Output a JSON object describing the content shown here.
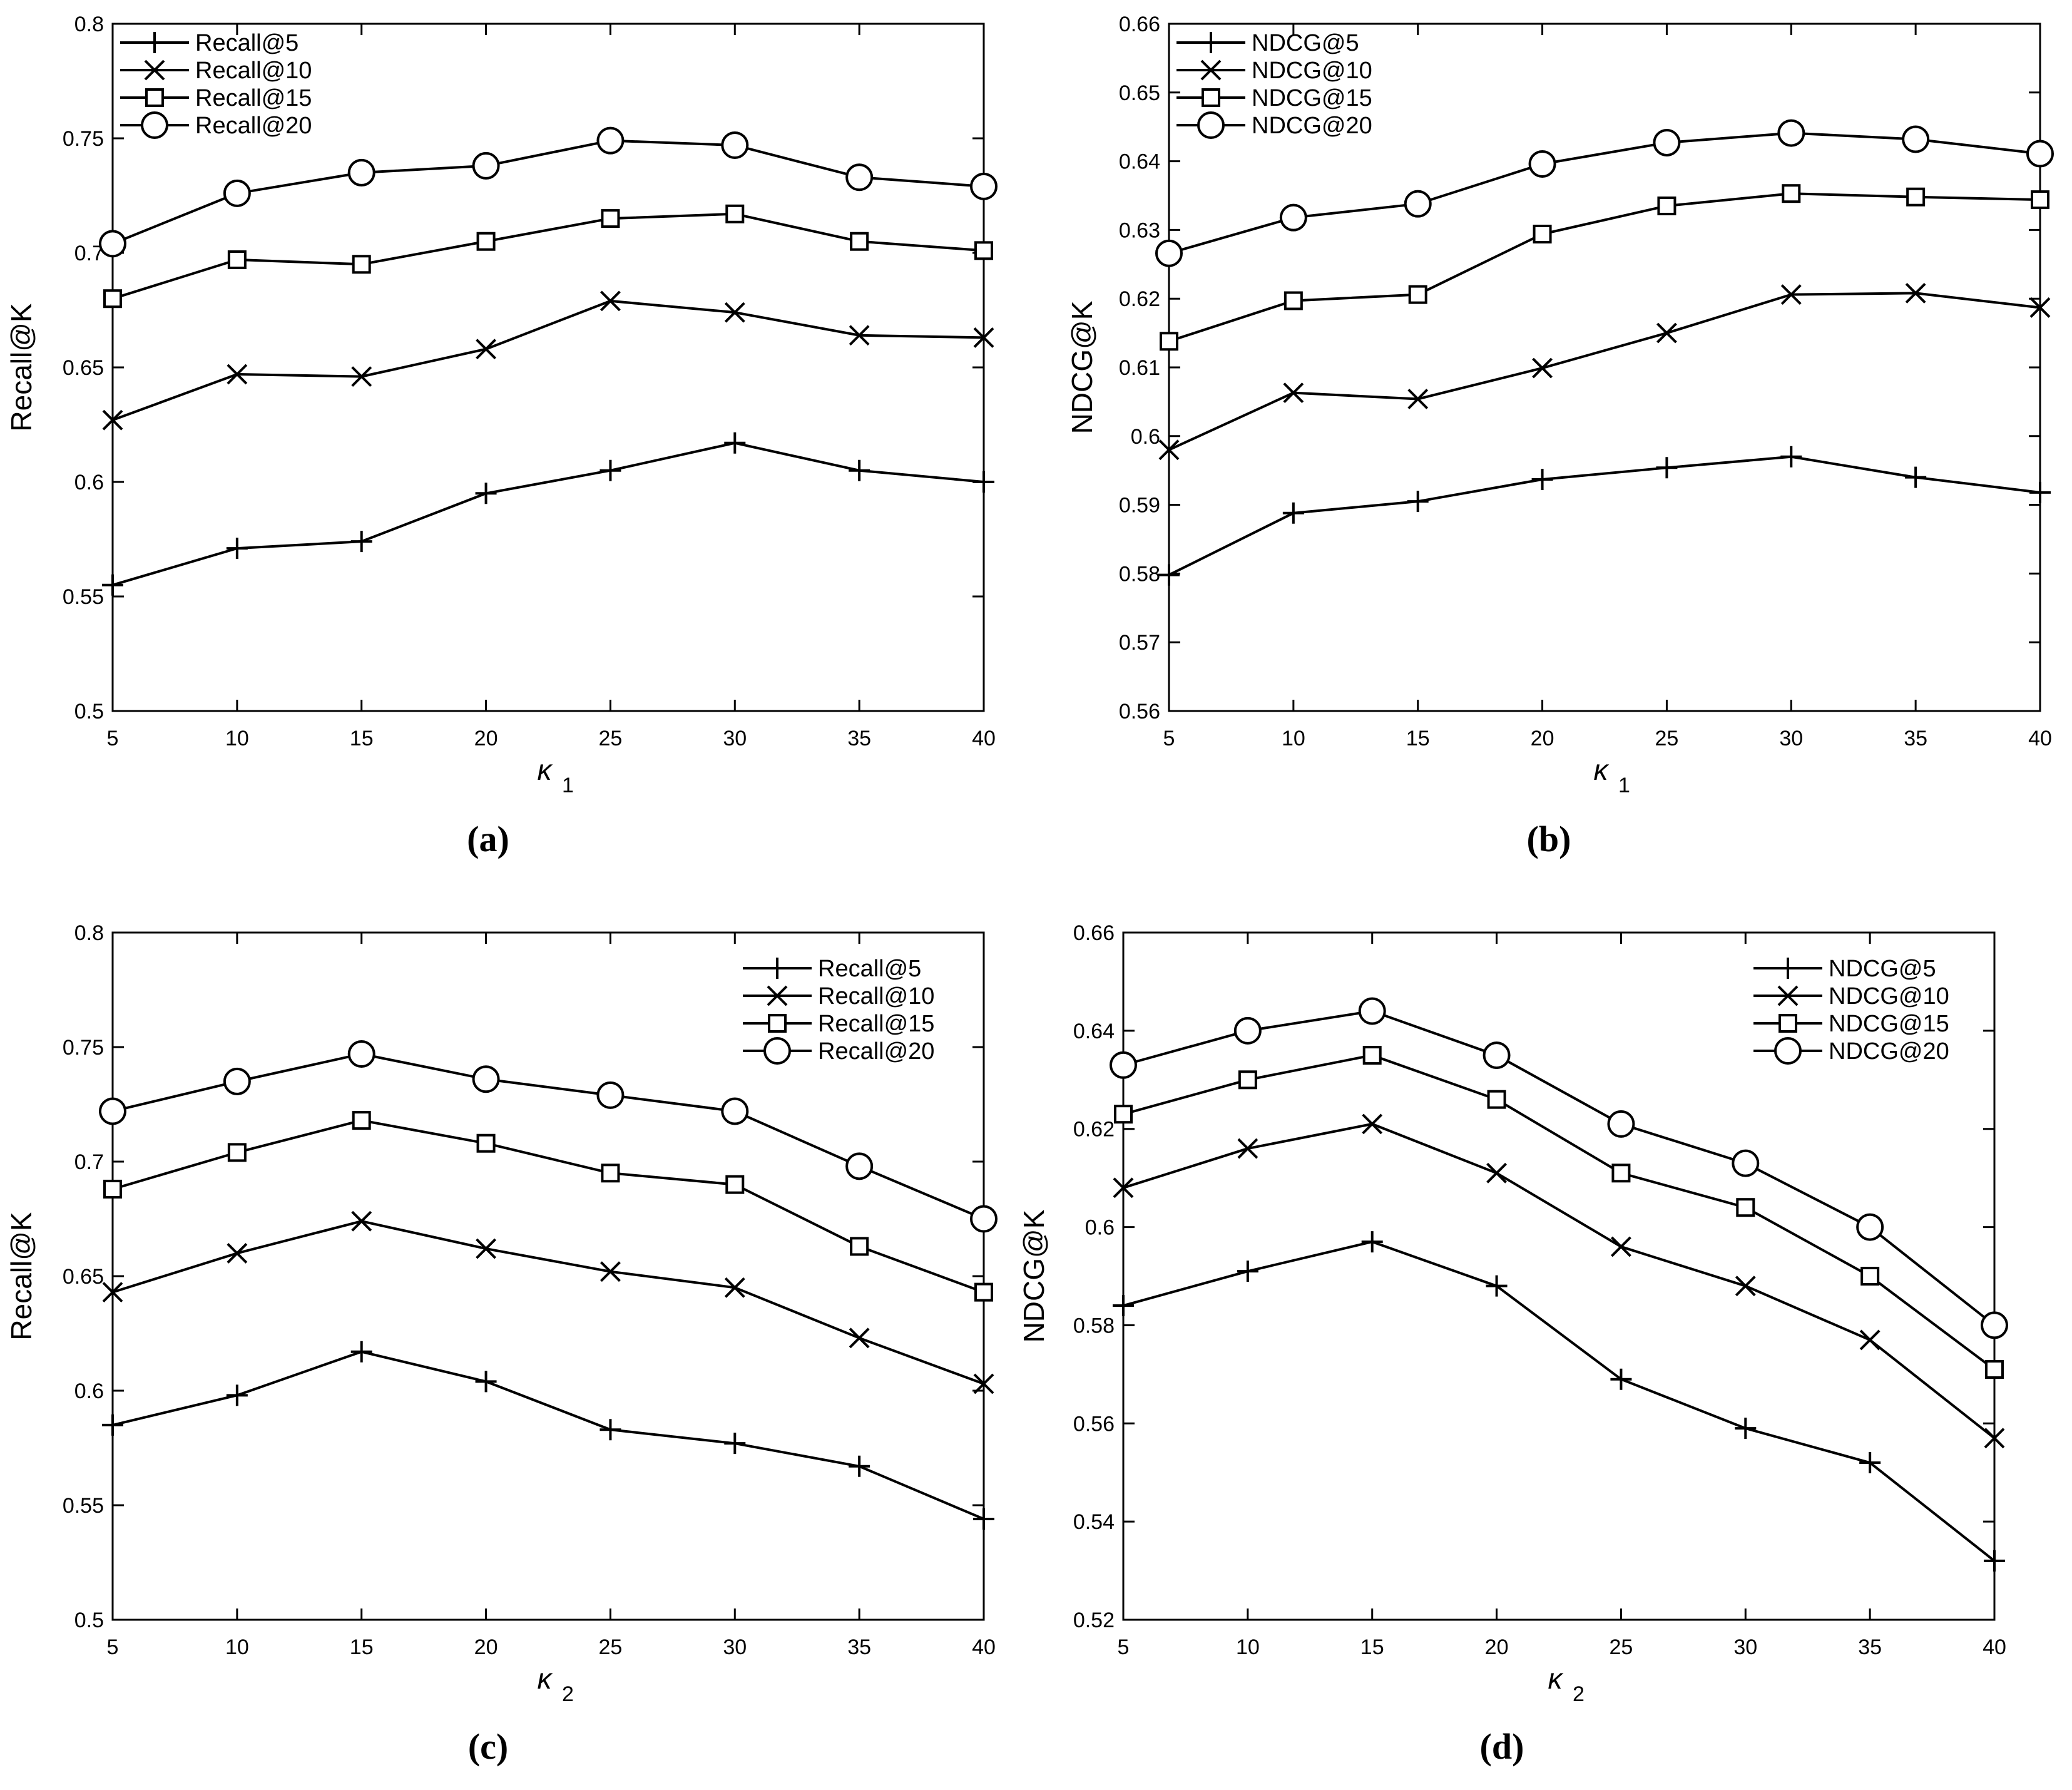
{
  "chart_data": [
    {
      "type": "line",
      "panel_label": "(a)",
      "xlabel": "κ",
      "xlabel_sub": "1",
      "ylabel": "Recall@K",
      "x": [
        5,
        10,
        15,
        20,
        25,
        30,
        35,
        40
      ],
      "xlim": [
        5,
        40
      ],
      "ylim": [
        0.5,
        0.8
      ],
      "xticks": [
        5,
        10,
        15,
        20,
        25,
        30,
        35,
        40
      ],
      "xtick_labels": [
        "5",
        "10",
        "15",
        "20",
        "25",
        "30",
        "35",
        "40"
      ],
      "yticks": [
        0.5,
        0.55,
        0.6,
        0.65,
        0.7,
        0.75,
        0.8
      ],
      "ytick_labels": [
        "0.5",
        "0.55",
        "0.6",
        "0.65",
        "0.7",
        "0.75",
        "0.8"
      ],
      "legend_position": "top-left",
      "series": [
        {
          "name": "Recall@5",
          "marker": "plus",
          "values": [
            0.555,
            0.571,
            0.574,
            0.595,
            0.605,
            0.617,
            0.605,
            0.6
          ]
        },
        {
          "name": "Recall@10",
          "marker": "x",
          "values": [
            0.627,
            0.647,
            0.646,
            0.658,
            0.679,
            0.674,
            0.664,
            0.663
          ]
        },
        {
          "name": "Recall@15",
          "marker": "square",
          "values": [
            0.68,
            0.697,
            0.695,
            0.705,
            0.715,
            0.717,
            0.705,
            0.701
          ]
        },
        {
          "name": "Recall@20",
          "marker": "circle",
          "values": [
            0.704,
            0.726,
            0.735,
            0.738,
            0.749,
            0.747,
            0.733,
            0.729
          ]
        }
      ]
    },
    {
      "type": "line",
      "panel_label": "(b)",
      "xlabel": "κ",
      "xlabel_sub": "1",
      "ylabel": "NDCG@K",
      "x": [
        5,
        10,
        15,
        20,
        25,
        30,
        35,
        40
      ],
      "xlim": [
        5,
        40
      ],
      "ylim": [
        0.56,
        0.66
      ],
      "xticks": [
        5,
        10,
        15,
        20,
        25,
        30,
        35,
        40
      ],
      "xtick_labels": [
        "5",
        "10",
        "15",
        "20",
        "25",
        "30",
        "35",
        "40"
      ],
      "yticks": [
        0.56,
        0.57,
        0.58,
        0.59,
        0.6,
        0.61,
        0.62,
        0.63,
        0.64,
        0.65,
        0.66
      ],
      "ytick_labels": [
        "0.56",
        "0.57",
        "0.58",
        "0.59",
        "0.6",
        "0.61",
        "0.62",
        "0.63",
        "0.64",
        "0.65",
        "0.66"
      ],
      "legend_position": "top-left",
      "series": [
        {
          "name": "NDCG@5",
          "marker": "plus",
          "values": [
            0.5798,
            0.5888,
            0.5905,
            0.5937,
            0.5954,
            0.597,
            0.594,
            0.5918
          ]
        },
        {
          "name": "NDCG@10",
          "marker": "x",
          "values": [
            0.598,
            0.6063,
            0.6054,
            0.6099,
            0.615,
            0.6206,
            0.6208,
            0.6187
          ]
        },
        {
          "name": "NDCG@15",
          "marker": "square",
          "values": [
            0.6138,
            0.6197,
            0.6206,
            0.6294,
            0.6335,
            0.6353,
            0.6348,
            0.6344
          ]
        },
        {
          "name": "NDCG@20",
          "marker": "circle",
          "values": [
            0.6266,
            0.6318,
            0.6338,
            0.6396,
            0.6427,
            0.6441,
            0.6432,
            0.6411
          ]
        }
      ]
    },
    {
      "type": "line",
      "panel_label": "(c)",
      "xlabel": "κ",
      "xlabel_sub": "2",
      "ylabel": "Recall@K",
      "x": [
        5,
        10,
        15,
        20,
        25,
        30,
        35,
        40
      ],
      "xlim": [
        5,
        40
      ],
      "ylim": [
        0.5,
        0.8
      ],
      "xticks": [
        5,
        10,
        15,
        20,
        25,
        30,
        35,
        40
      ],
      "xtick_labels": [
        "5",
        "10",
        "15",
        "20",
        "25",
        "30",
        "35",
        "40"
      ],
      "yticks": [
        0.5,
        0.55,
        0.6,
        0.65,
        0.7,
        0.75,
        0.8
      ],
      "ytick_labels": [
        "0.5",
        "0.55",
        "0.6",
        "0.65",
        "0.7",
        "0.75",
        "0.8"
      ],
      "legend_position": "top-right",
      "series": [
        {
          "name": "Recall@5",
          "marker": "plus",
          "values": [
            0.585,
            0.598,
            0.617,
            0.604,
            0.583,
            0.577,
            0.567,
            0.544
          ]
        },
        {
          "name": "Recall@10",
          "marker": "x",
          "values": [
            0.643,
            0.66,
            0.674,
            0.662,
            0.652,
            0.645,
            0.623,
            0.603
          ]
        },
        {
          "name": "Recall@15",
          "marker": "square",
          "values": [
            0.688,
            0.704,
            0.718,
            0.708,
            0.695,
            0.69,
            0.663,
            0.643
          ]
        },
        {
          "name": "Recall@20",
          "marker": "circle",
          "values": [
            0.722,
            0.735,
            0.747,
            0.736,
            0.729,
            0.722,
            0.698,
            0.675
          ]
        }
      ]
    },
    {
      "type": "line",
      "panel_label": "(d)",
      "xlabel": "κ",
      "xlabel_sub": "2",
      "ylabel": "NDCG@K",
      "x": [
        5,
        10,
        15,
        20,
        25,
        30,
        35,
        40
      ],
      "xlim": [
        5,
        40
      ],
      "ylim": [
        0.52,
        0.66
      ],
      "xticks": [
        5,
        10,
        15,
        20,
        25,
        30,
        35,
        40
      ],
      "xtick_labels": [
        "5",
        "10",
        "15",
        "20",
        "25",
        "30",
        "35",
        "40"
      ],
      "yticks": [
        0.52,
        0.54,
        0.56,
        0.58,
        0.6,
        0.62,
        0.64,
        0.66
      ],
      "ytick_labels": [
        "0.52",
        "0.54",
        "0.56",
        "0.58",
        "0.6",
        "0.62",
        "0.64",
        "0.66"
      ],
      "legend_position": "top-right",
      "series": [
        {
          "name": "NDCG@5",
          "marker": "plus",
          "values": [
            0.584,
            0.591,
            0.597,
            0.588,
            0.569,
            0.559,
            0.552,
            0.532
          ]
        },
        {
          "name": "NDCG@10",
          "marker": "x",
          "values": [
            0.608,
            0.616,
            0.621,
            0.611,
            0.596,
            0.588,
            0.577,
            0.557
          ]
        },
        {
          "name": "NDCG@15",
          "marker": "square",
          "values": [
            0.623,
            0.63,
            0.635,
            0.626,
            0.611,
            0.604,
            0.59,
            0.571
          ]
        },
        {
          "name": "NDCG@20",
          "marker": "circle",
          "values": [
            0.633,
            0.64,
            0.644,
            0.635,
            0.621,
            0.613,
            0.6,
            0.58
          ]
        }
      ]
    }
  ]
}
